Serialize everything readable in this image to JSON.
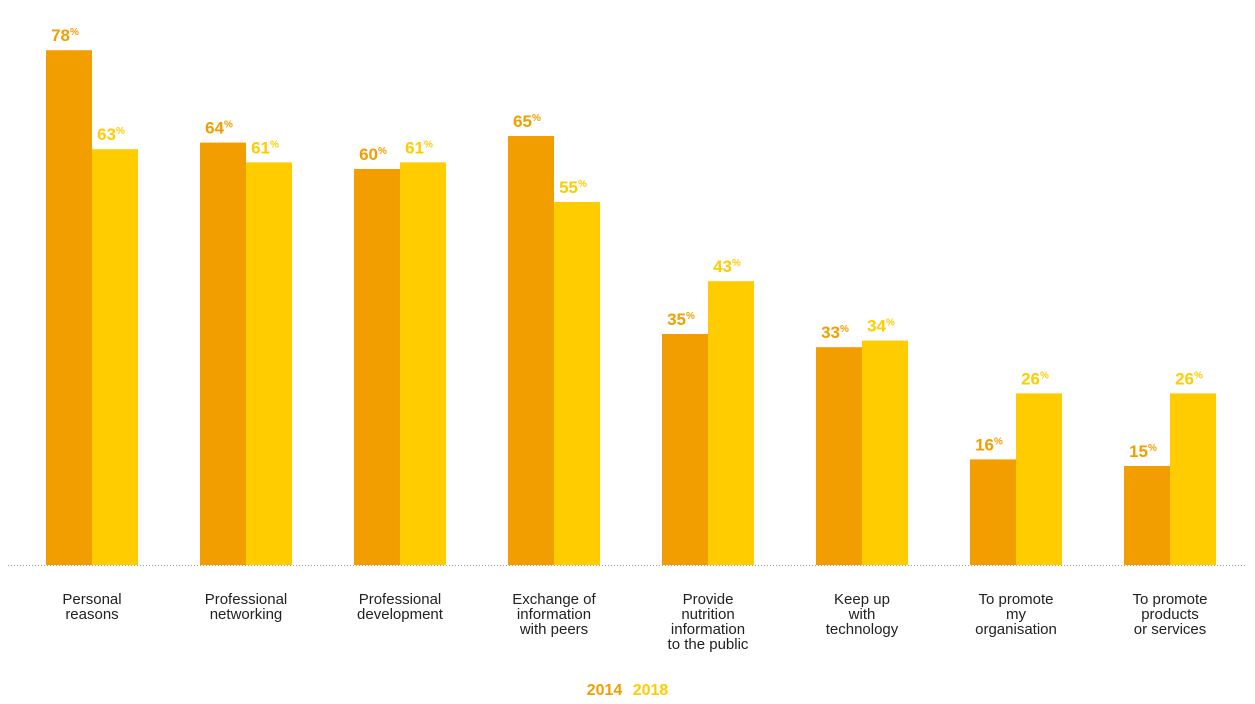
{
  "chart_data": {
    "type": "bar",
    "categories": [
      [
        "Personal",
        "reasons"
      ],
      [
        "Professional",
        "networking"
      ],
      [
        "Professional",
        "development"
      ],
      [
        "Exchange of",
        "information",
        "with peers"
      ],
      [
        "Provide",
        "nutrition",
        "information",
        "to the public"
      ],
      [
        "Keep up",
        "with",
        "technology"
      ],
      [
        "To promote",
        "my",
        "organisation"
      ],
      [
        "To promote",
        "products",
        "or services"
      ]
    ],
    "series": [
      {
        "name": "2014",
        "values": [
          78,
          64,
          60,
          65,
          35,
          33,
          16,
          15
        ],
        "color": "#F29E00"
      },
      {
        "name": "2018",
        "values": [
          63,
          61,
          61,
          55,
          43,
          34,
          26,
          26
        ],
        "color": "#FFCC00"
      }
    ],
    "value_suffix": "%",
    "ylim": [
      0,
      100
    ],
    "grid": false,
    "legend_position": "bottom-center"
  }
}
